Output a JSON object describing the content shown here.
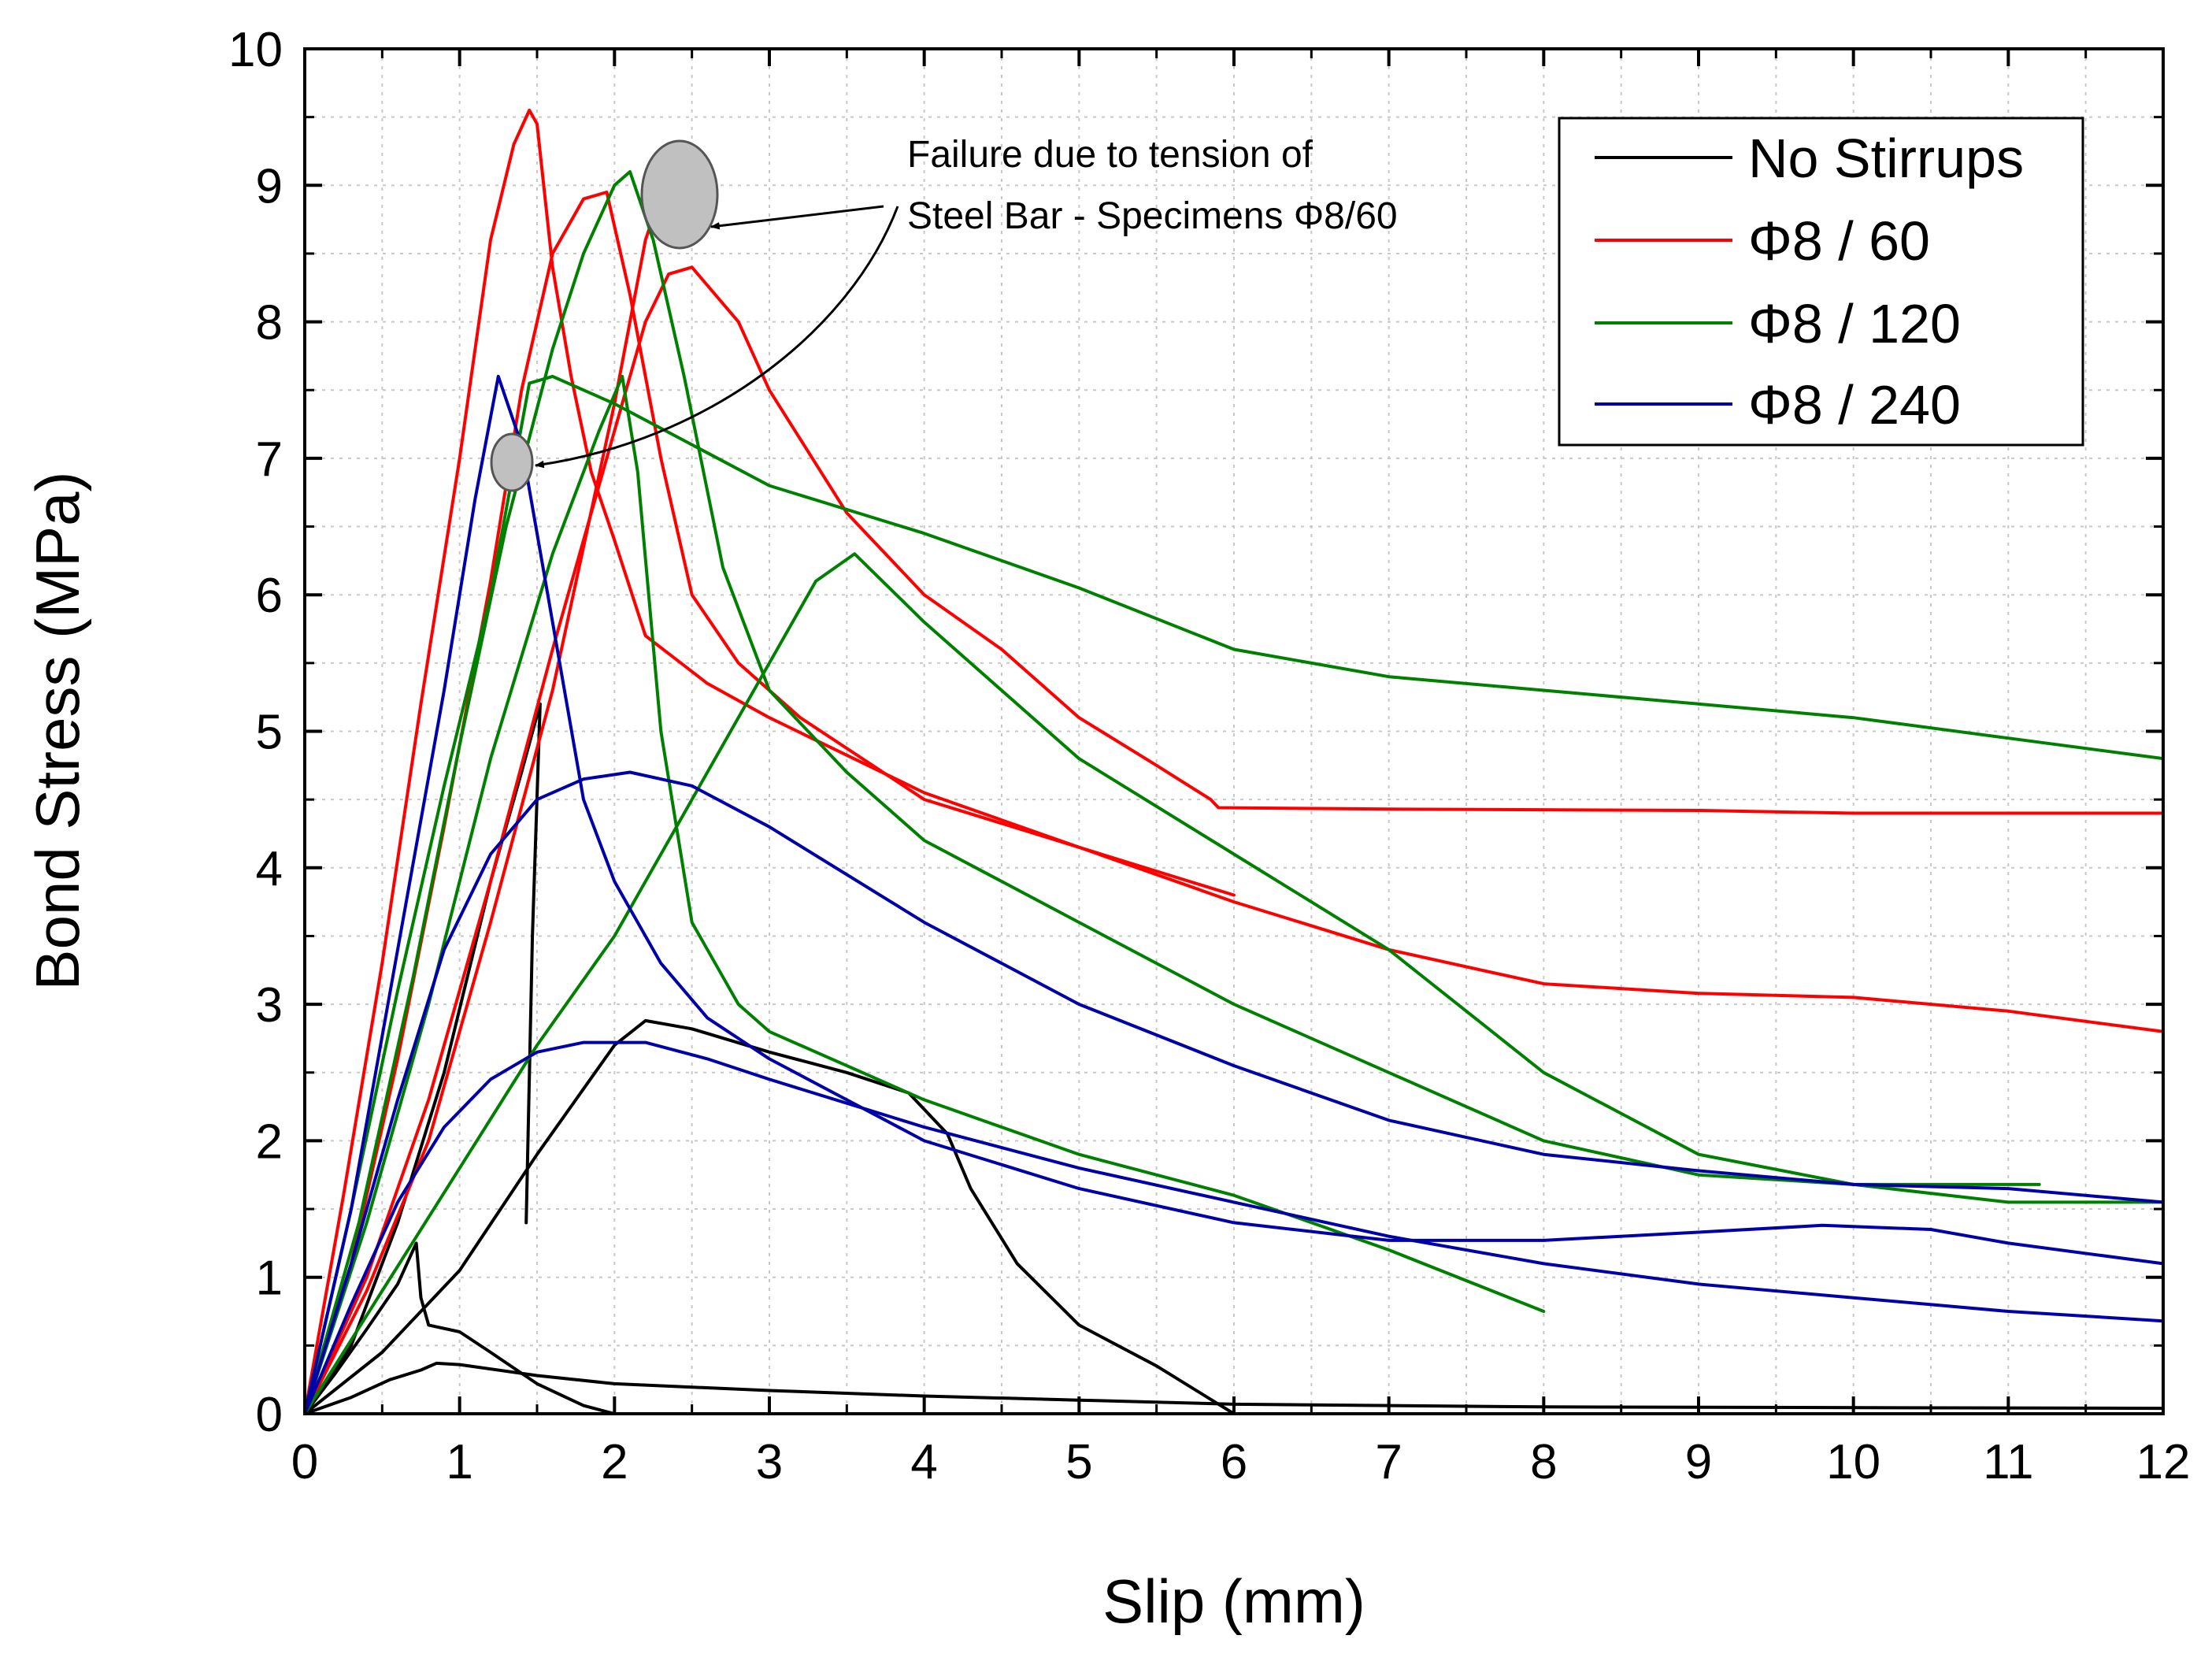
{
  "chart_data": {
    "type": "line",
    "title": "",
    "xlabel": "Slip (mm)",
    "ylabel": "Bond Stress (MPa)",
    "xlim": [
      0,
      12
    ],
    "ylim": [
      0,
      10
    ],
    "x_ticks": [
      "0",
      "1",
      "2",
      "3",
      "4",
      "5",
      "6",
      "7",
      "8",
      "9",
      "10",
      "11",
      "12"
    ],
    "y_ticks": [
      "0",
      "1",
      "2",
      "3",
      "4",
      "5",
      "6",
      "7",
      "8",
      "9",
      "10"
    ],
    "grid": true,
    "legend_position": "top-right",
    "legend": [
      {
        "label": "No Stirrups",
        "color": "#000000"
      },
      {
        "label": "Φ8 / 60",
        "color": "#ff0000"
      },
      {
        "label": "Φ8 / 120",
        "color": "#008000"
      },
      {
        "label": "Φ8 / 240",
        "color": "#0000aa"
      }
    ],
    "annotation": {
      "lines": [
        "Failure due to tension of",
        "Steel Bar - Specimens Φ8/60"
      ],
      "markers": [
        {
          "x": 2.4,
          "y": 8.95
        },
        {
          "x": 1.32,
          "y": 7.0
        }
      ]
    },
    "series": [
      {
        "name": "No Stirrups",
        "color": "#000000",
        "points": [
          [
            0,
            0
          ],
          [
            0.3,
            0.12
          ],
          [
            0.55,
            0.25
          ],
          [
            0.75,
            0.32
          ],
          [
            0.85,
            0.37
          ],
          [
            1,
            0.36
          ],
          [
            1.5,
            0.28
          ],
          [
            2,
            0.22
          ],
          [
            3,
            0.17
          ],
          [
            4,
            0.13
          ],
          [
            5,
            0.1
          ],
          [
            6,
            0.07
          ],
          [
            8,
            0.05
          ],
          [
            12,
            0.04
          ]
        ]
      },
      {
        "name": "No Stirrups",
        "color": "#000000",
        "points": [
          [
            0,
            0
          ],
          [
            0.2,
            0.3
          ],
          [
            0.4,
            0.62
          ],
          [
            0.6,
            0.95
          ],
          [
            0.72,
            1.25
          ],
          [
            0.75,
            0.85
          ],
          [
            0.8,
            0.65
          ],
          [
            1.0,
            0.6
          ],
          [
            1.2,
            0.45
          ],
          [
            1.5,
            0.22
          ],
          [
            1.8,
            0.06
          ],
          [
            2.0,
            0
          ]
        ]
      },
      {
        "name": "No Stirrups",
        "color": "#000000",
        "points": [
          [
            0,
            0
          ],
          [
            0.3,
            0.5
          ],
          [
            0.6,
            1.4
          ],
          [
            0.9,
            2.5
          ],
          [
            1.2,
            3.9
          ],
          [
            1.4,
            4.7
          ],
          [
            1.52,
            5.2
          ],
          [
            1.47,
            3.5
          ],
          [
            1.43,
            1.4
          ]
        ]
      },
      {
        "name": "No Stirrups",
        "color": "#000000",
        "points": [
          [
            0,
            0
          ],
          [
            0.5,
            0.45
          ],
          [
            1,
            1.05
          ],
          [
            1.5,
            1.9
          ],
          [
            2,
            2.7
          ],
          [
            2.2,
            2.88
          ],
          [
            2.5,
            2.82
          ],
          [
            3,
            2.65
          ],
          [
            3.5,
            2.5
          ],
          [
            3.9,
            2.35
          ],
          [
            4.15,
            2.05
          ],
          [
            4.3,
            1.65
          ],
          [
            4.6,
            1.1
          ],
          [
            5,
            0.65
          ],
          [
            5.5,
            0.35
          ],
          [
            6,
            0
          ]
        ]
      },
      {
        "name": "Φ8 / 60",
        "color": "#ff0000",
        "points": [
          [
            0,
            0
          ],
          [
            0.25,
            1.6
          ],
          [
            0.5,
            3.3
          ],
          [
            0.75,
            5.2
          ],
          [
            1.0,
            7.0
          ],
          [
            1.2,
            8.6
          ],
          [
            1.35,
            9.3
          ],
          [
            1.45,
            9.55
          ],
          [
            1.5,
            9.45
          ],
          [
            1.6,
            8.4
          ],
          [
            1.72,
            7.6
          ],
          [
            1.85,
            6.9
          ],
          [
            2.0,
            6.4
          ],
          [
            2.2,
            5.7
          ],
          [
            2.6,
            5.35
          ],
          [
            3.0,
            5.1
          ],
          [
            4,
            4.55
          ],
          [
            5,
            4.15
          ],
          [
            6,
            3.75
          ],
          [
            7,
            3.4
          ],
          [
            8,
            3.15
          ],
          [
            9,
            3.08
          ],
          [
            10,
            3.05
          ],
          [
            11,
            2.95
          ],
          [
            12,
            2.8
          ]
        ]
      },
      {
        "name": "Φ8 / 60",
        "color": "#ff0000",
        "points": [
          [
            0,
            0
          ],
          [
            0.3,
            1.1
          ],
          [
            0.6,
            2.6
          ],
          [
            0.9,
            4.3
          ],
          [
            1.2,
            6.1
          ],
          [
            1.4,
            7.5
          ],
          [
            1.6,
            8.5
          ],
          [
            1.8,
            8.9
          ],
          [
            1.95,
            8.95
          ],
          [
            2.1,
            8.2
          ],
          [
            2.3,
            7.0
          ],
          [
            2.5,
            6.0
          ],
          [
            2.8,
            5.5
          ],
          [
            3.2,
            5.1
          ],
          [
            4,
            4.5
          ],
          [
            5,
            4.15
          ],
          [
            6,
            3.8
          ]
        ]
      },
      {
        "name": "Φ8 / 60",
        "color": "#ff0000",
        "points": [
          [
            0,
            0
          ],
          [
            0.4,
            1.0
          ],
          [
            0.8,
            2.3
          ],
          [
            1.2,
            3.9
          ],
          [
            1.6,
            5.6
          ],
          [
            2.0,
            7.2
          ],
          [
            2.2,
            8.0
          ],
          [
            2.35,
            8.35
          ],
          [
            2.5,
            8.4
          ],
          [
            2.8,
            8.0
          ],
          [
            3,
            7.5
          ],
          [
            3.5,
            6.6
          ],
          [
            4,
            6.0
          ],
          [
            4.5,
            5.6
          ],
          [
            5,
            5.1
          ],
          [
            5.5,
            4.75
          ],
          [
            5.85,
            4.5
          ],
          [
            5.9,
            4.44
          ],
          [
            7,
            4.43
          ],
          [
            9,
            4.42
          ],
          [
            10,
            4.4
          ],
          [
            12,
            4.4
          ]
        ]
      },
      {
        "name": "Φ8 / 60",
        "color": "#ff0000",
        "points": [
          [
            0,
            0
          ],
          [
            0.4,
            0.9
          ],
          [
            0.8,
            2.0
          ],
          [
            1.2,
            3.6
          ],
          [
            1.6,
            5.3
          ],
          [
            2.0,
            7.4
          ],
          [
            2.2,
            8.6
          ],
          [
            2.35,
            9.1
          ],
          [
            2.4,
            9.2
          ]
        ]
      },
      {
        "name": "Φ8 / 120",
        "color": "#008000",
        "points": [
          [
            0,
            0
          ],
          [
            0.3,
            1.5
          ],
          [
            0.6,
            3.1
          ],
          [
            0.9,
            4.6
          ],
          [
            1.2,
            6.0
          ],
          [
            1.45,
            7.55
          ],
          [
            1.6,
            7.6
          ],
          [
            2,
            7.4
          ],
          [
            3,
            6.8
          ],
          [
            4,
            6.45
          ],
          [
            5,
            6.05
          ],
          [
            6,
            5.6
          ],
          [
            7,
            5.4
          ],
          [
            8,
            5.3
          ],
          [
            9,
            5.2
          ],
          [
            10,
            5.1
          ],
          [
            11,
            4.95
          ],
          [
            12,
            4.8
          ]
        ]
      },
      {
        "name": "Φ8 / 120",
        "color": "#008000",
        "points": [
          [
            0,
            0
          ],
          [
            0.35,
            1.4
          ],
          [
            0.7,
            3.2
          ],
          [
            1.0,
            4.9
          ],
          [
            1.3,
            6.5
          ],
          [
            1.6,
            7.8
          ],
          [
            1.8,
            8.5
          ],
          [
            2.0,
            9.0
          ],
          [
            2.1,
            9.1
          ],
          [
            2.25,
            8.6
          ],
          [
            2.45,
            7.6
          ],
          [
            2.7,
            6.2
          ],
          [
            3.0,
            5.3
          ],
          [
            3.5,
            4.7
          ],
          [
            4,
            4.2
          ],
          [
            5,
            3.6
          ],
          [
            6,
            3.0
          ],
          [
            7,
            2.5
          ],
          [
            8,
            2.0
          ],
          [
            9,
            1.75
          ],
          [
            10,
            1.68
          ],
          [
            11,
            1.68
          ],
          [
            11.2,
            1.68
          ]
        ]
      },
      {
        "name": "Φ8 / 120",
        "color": "#008000",
        "points": [
          [
            0,
            0
          ],
          [
            0.4,
            1.4
          ],
          [
            0.8,
            3.0
          ],
          [
            1.2,
            4.8
          ],
          [
            1.6,
            6.3
          ],
          [
            1.9,
            7.2
          ],
          [
            2.05,
            7.6
          ],
          [
            2.15,
            6.9
          ],
          [
            2.3,
            5.0
          ],
          [
            2.5,
            3.6
          ],
          [
            2.8,
            3.0
          ],
          [
            3,
            2.8
          ],
          [
            4,
            2.3
          ],
          [
            5,
            1.9
          ],
          [
            6,
            1.6
          ],
          [
            7,
            1.2
          ],
          [
            8,
            0.75
          ]
        ]
      },
      {
        "name": "Φ8 / 120",
        "color": "#008000",
        "points": [
          [
            0,
            0
          ],
          [
            0.5,
            0.9
          ],
          [
            1.0,
            1.8
          ],
          [
            1.5,
            2.7
          ],
          [
            2.0,
            3.5
          ],
          [
            2.5,
            4.5
          ],
          [
            3.0,
            5.5
          ],
          [
            3.3,
            6.1
          ],
          [
            3.55,
            6.3
          ],
          [
            4,
            5.8
          ],
          [
            5,
            4.8
          ],
          [
            6,
            4.1
          ],
          [
            7,
            3.4
          ],
          [
            8,
            2.5
          ],
          [
            9,
            1.9
          ],
          [
            10,
            1.68
          ],
          [
            11,
            1.55
          ],
          [
            12,
            1.55
          ]
        ]
      },
      {
        "name": "Φ8 / 240",
        "color": "#0000aa",
        "points": [
          [
            0,
            0
          ],
          [
            0.3,
            1.5
          ],
          [
            0.6,
            3.4
          ],
          [
            0.9,
            5.3
          ],
          [
            1.1,
            6.7
          ],
          [
            1.25,
            7.6
          ],
          [
            1.4,
            7.1
          ],
          [
            1.6,
            5.8
          ],
          [
            1.8,
            4.5
          ],
          [
            2.0,
            3.9
          ],
          [
            2.3,
            3.3
          ],
          [
            2.6,
            2.9
          ],
          [
            3,
            2.6
          ],
          [
            4,
            2.0
          ],
          [
            5,
            1.65
          ],
          [
            6,
            1.4
          ],
          [
            7,
            1.27
          ],
          [
            8,
            1.27
          ],
          [
            9,
            1.33
          ],
          [
            9.8,
            1.38
          ],
          [
            10.5,
            1.35
          ],
          [
            11,
            1.25
          ],
          [
            12,
            1.1
          ]
        ]
      },
      {
        "name": "Φ8 / 240",
        "color": "#0000aa",
        "points": [
          [
            0,
            0
          ],
          [
            0.3,
            1.1
          ],
          [
            0.6,
            2.3
          ],
          [
            0.9,
            3.4
          ],
          [
            1.2,
            4.1
          ],
          [
            1.5,
            4.5
          ],
          [
            1.8,
            4.65
          ],
          [
            2.1,
            4.7
          ],
          [
            2.5,
            4.6
          ],
          [
            3,
            4.3
          ],
          [
            4,
            3.6
          ],
          [
            5,
            3.0
          ],
          [
            6,
            2.55
          ],
          [
            7,
            2.15
          ],
          [
            8,
            1.9
          ],
          [
            9,
            1.78
          ],
          [
            10,
            1.68
          ],
          [
            11,
            1.65
          ],
          [
            12,
            1.55
          ]
        ]
      },
      {
        "name": "Φ8 / 240",
        "color": "#0000aa",
        "points": [
          [
            0,
            0
          ],
          [
            0.3,
            0.8
          ],
          [
            0.6,
            1.55
          ],
          [
            0.9,
            2.1
          ],
          [
            1.2,
            2.45
          ],
          [
            1.5,
            2.65
          ],
          [
            1.8,
            2.72
          ],
          [
            2.2,
            2.72
          ],
          [
            2.6,
            2.6
          ],
          [
            3,
            2.45
          ],
          [
            4,
            2.1
          ],
          [
            5,
            1.8
          ],
          [
            6,
            1.55
          ],
          [
            7,
            1.3
          ],
          [
            8,
            1.1
          ],
          [
            9,
            0.95
          ],
          [
            10,
            0.85
          ],
          [
            11,
            0.75
          ],
          [
            12,
            0.68
          ]
        ]
      }
    ]
  }
}
